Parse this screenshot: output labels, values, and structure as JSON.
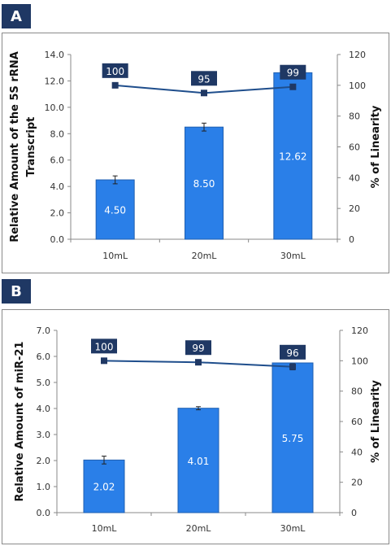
{
  "panels": [
    {
      "label": "A",
      "chart_data": {
        "type": "bar",
        "categories": [
          "10mL",
          "20mL",
          "30mL"
        ],
        "values": [
          4.5,
          8.5,
          12.62
        ],
        "value_labels": [
          "4.50",
          "8.50",
          "12.62"
        ],
        "errors": [
          0.3,
          0.3,
          0.1
        ],
        "bar_color": "#2a7fe8",
        "ylabel": "Relative Amount of the 5S rRNA Transcript",
        "ylabel_lines": [
          "Relative Amount of the 5S rRNA",
          "Transcript"
        ],
        "ylim": [
          0,
          14
        ],
        "yticks": [
          "0.0",
          "2.0",
          "4.0",
          "6.0",
          "8.0",
          "10.0",
          "12.0",
          "14.0"
        ],
        "y2label": "% of Linearity",
        "y2lim": [
          0,
          120
        ],
        "y2ticks": [
          "0",
          "20",
          "40",
          "60",
          "80",
          "100",
          "120"
        ],
        "line_values": [
          100,
          95,
          99
        ],
        "line_labels": [
          "100",
          "95",
          "99"
        ],
        "line_color": "#1f3864"
      }
    },
    {
      "label": "B",
      "chart_data": {
        "type": "bar",
        "categories": [
          "10mL",
          "20mL",
          "30mL"
        ],
        "values": [
          2.02,
          4.01,
          5.75
        ],
        "value_labels": [
          "2.02",
          "4.01",
          "5.75"
        ],
        "errors": [
          0.15,
          0.06,
          0.0
        ],
        "bar_color": "#2a7fe8",
        "ylabel": "Relative Amount of miR-21",
        "ylabel_lines": [
          "Relative Amount of miR-21"
        ],
        "ylim": [
          0,
          7
        ],
        "yticks": [
          "0.0",
          "1.0",
          "2.0",
          "3.0",
          "4.0",
          "5.0",
          "6.0",
          "7.0"
        ],
        "y2label": "% of Linearity",
        "y2lim": [
          0,
          120
        ],
        "y2ticks": [
          "0",
          "20",
          "40",
          "60",
          "80",
          "100",
          "120"
        ],
        "line_values": [
          100,
          99,
          96
        ],
        "line_labels": [
          "100",
          "99",
          "96"
        ],
        "line_errors": [
          0,
          0,
          2
        ],
        "line_color": "#1f3864"
      }
    }
  ]
}
